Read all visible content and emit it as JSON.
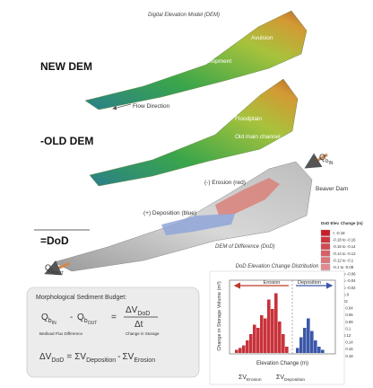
{
  "header": {
    "title": "Digital Elevation Model (DEM)"
  },
  "new_dem": {
    "label": "NEW DEM",
    "annotations": [
      "Avulsion",
      "Bar Development",
      "Flow Direction"
    ]
  },
  "old_dem": {
    "label": "-OLD DEM",
    "annotations": [
      "Floodplain",
      "Old main channel"
    ]
  },
  "dod": {
    "label": "=DoD",
    "annotations": [
      "(-) Erosion (red)",
      "(+) Deposition (blue)",
      "Beaver Dam",
      "DEM of Difference (DoD)"
    ],
    "inflow": {
      "symbol": "Q",
      "sub": "b",
      "subsub": "IN"
    },
    "outflow": {
      "symbol": "Q",
      "sub": "b",
      "subsub": "OUT"
    }
  },
  "legend": {
    "title": "DoD Elev. Change (m)",
    "entries": [
      "< -0.18",
      "-0.18 to -0.16",
      "-0.16 to -0.14",
      "-0.14 to -0.12",
      "-0.12 to -0.1",
      "-0.1 to -0.08",
      "-0.08 to -0.06",
      "-0.06 to -0.04",
      "-0.04 to -0.02",
      "-0.02 to 0",
      "0 to 0.02",
      "0.02 to 0.04",
      "0.04 to 0.06",
      "0.06 to 0.08",
      "0.08 to 0.1",
      "0.1 to 0.12",
      "0.12 to 0.14",
      "0.14 to 0.16",
      "0.16 to 0.18",
      "> 0.18"
    ]
  },
  "budget": {
    "title": "Morphological Sediment Budget:",
    "equation1": {
      "lhs_in": {
        "symbol": "Q",
        "sub": "b",
        "subsub": "IN"
      },
      "minus": "-",
      "lhs_out": {
        "symbol": "Q",
        "sub": "b",
        "subsub": "OUT"
      },
      "equals": "=",
      "numerator": {
        "symbol": "ΔV",
        "sub": "DoD"
      },
      "denominator": "Δt",
      "left_caption": "Bedload Flux Difference",
      "right_caption": "Change in Storage"
    },
    "equation2": {
      "lhs": {
        "symbol": "ΔV",
        "sub": "DoD"
      },
      "equals": "=",
      "term1": {
        "symbol": "ΣV",
        "sub": "Deposition"
      },
      "minus": "-",
      "term2": {
        "symbol": "ΣV",
        "sub": "Erosion"
      }
    }
  },
  "histogram": {
    "title": "DoD Elevation Change Distribution",
    "y_label": "Change in Storage Volume (m³)",
    "x_label": "Elevation Change (m)",
    "erosion_label": "Erosion",
    "deposition_label": "Deposition",
    "erosion_counts": [
      5,
      8,
      12,
      20,
      30,
      45,
      40,
      60,
      55,
      85,
      70,
      95,
      50,
      30,
      10
    ],
    "deposition_counts": [
      8,
      25,
      40,
      55,
      35,
      20,
      10,
      5
    ],
    "sum_erosion": {
      "symbol": "ΣV",
      "sub": "Erosion"
    },
    "sum_deposition": {
      "symbol": "ΣV",
      "sub": "Deposition"
    }
  }
}
